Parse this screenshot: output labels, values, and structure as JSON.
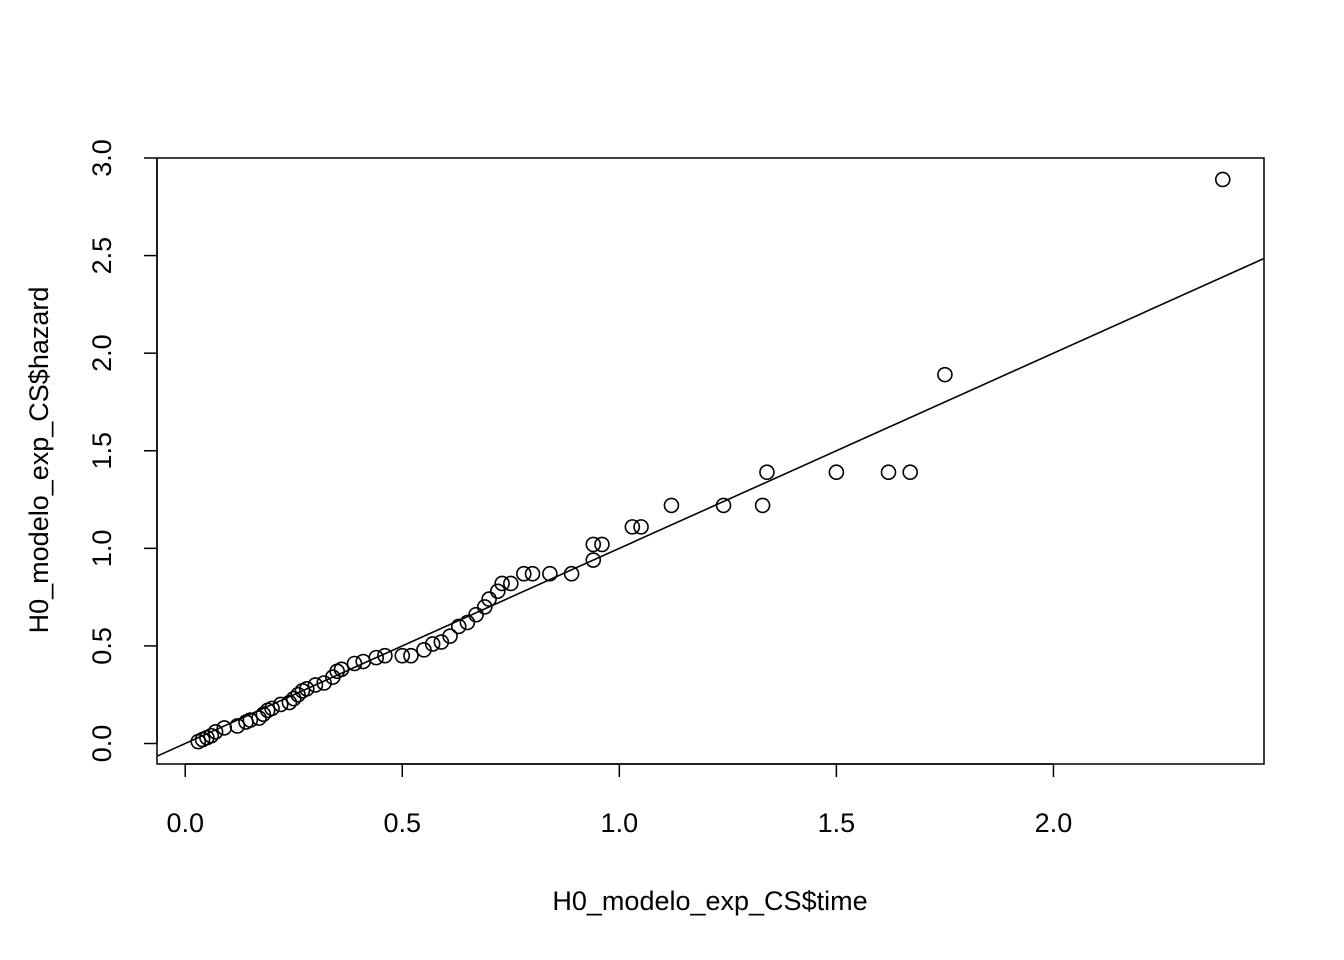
{
  "chart_data": {
    "type": "scatter",
    "title": "",
    "xlabel": "H0_modelo_exp_CS$time",
    "ylabel": "H0_modelo_exp_CS$hazard",
    "xlim": [
      -0.065,
      2.485
    ],
    "ylim": [
      -0.105,
      3.0
    ],
    "xticks": [
      0.0,
      0.5,
      1.0,
      1.5,
      2.0
    ],
    "xtick_labels": [
      "0.0",
      "0.5",
      "1.0",
      "1.5",
      "2.0"
    ],
    "yticks": [
      0.0,
      0.5,
      1.0,
      1.5,
      2.0,
      2.5,
      3.0
    ],
    "ytick_labels": [
      "0.0",
      "0.5",
      "1.0",
      "1.5",
      "2.0",
      "2.5",
      "3.0"
    ],
    "grid": false,
    "legend": "none",
    "reference_line": {
      "intercept": 0.0,
      "slope": 1.0
    },
    "points": [
      {
        "x": 0.03,
        "y": 0.01
      },
      {
        "x": 0.04,
        "y": 0.02
      },
      {
        "x": 0.05,
        "y": 0.03
      },
      {
        "x": 0.06,
        "y": 0.04
      },
      {
        "x": 0.07,
        "y": 0.06
      },
      {
        "x": 0.09,
        "y": 0.08
      },
      {
        "x": 0.12,
        "y": 0.09
      },
      {
        "x": 0.14,
        "y": 0.11
      },
      {
        "x": 0.15,
        "y": 0.12
      },
      {
        "x": 0.17,
        "y": 0.13
      },
      {
        "x": 0.18,
        "y": 0.15
      },
      {
        "x": 0.19,
        "y": 0.17
      },
      {
        "x": 0.2,
        "y": 0.18
      },
      {
        "x": 0.22,
        "y": 0.2
      },
      {
        "x": 0.24,
        "y": 0.21
      },
      {
        "x": 0.25,
        "y": 0.23
      },
      {
        "x": 0.26,
        "y": 0.25
      },
      {
        "x": 0.27,
        "y": 0.27
      },
      {
        "x": 0.28,
        "y": 0.28
      },
      {
        "x": 0.3,
        "y": 0.3
      },
      {
        "x": 0.32,
        "y": 0.31
      },
      {
        "x": 0.34,
        "y": 0.34
      },
      {
        "x": 0.35,
        "y": 0.37
      },
      {
        "x": 0.36,
        "y": 0.38
      },
      {
        "x": 0.39,
        "y": 0.41
      },
      {
        "x": 0.41,
        "y": 0.42
      },
      {
        "x": 0.44,
        "y": 0.44
      },
      {
        "x": 0.46,
        "y": 0.45
      },
      {
        "x": 0.5,
        "y": 0.45
      },
      {
        "x": 0.52,
        "y": 0.45
      },
      {
        "x": 0.55,
        "y": 0.48
      },
      {
        "x": 0.57,
        "y": 0.51
      },
      {
        "x": 0.59,
        "y": 0.52
      },
      {
        "x": 0.61,
        "y": 0.55
      },
      {
        "x": 0.63,
        "y": 0.6
      },
      {
        "x": 0.65,
        "y": 0.62
      },
      {
        "x": 0.67,
        "y": 0.66
      },
      {
        "x": 0.69,
        "y": 0.7
      },
      {
        "x": 0.7,
        "y": 0.74
      },
      {
        "x": 0.72,
        "y": 0.78
      },
      {
        "x": 0.73,
        "y": 0.82
      },
      {
        "x": 0.75,
        "y": 0.82
      },
      {
        "x": 0.78,
        "y": 0.87
      },
      {
        "x": 0.8,
        "y": 0.87
      },
      {
        "x": 0.84,
        "y": 0.87
      },
      {
        "x": 0.89,
        "y": 0.87
      },
      {
        "x": 0.94,
        "y": 0.94
      },
      {
        "x": 0.94,
        "y": 1.02
      },
      {
        "x": 0.96,
        "y": 1.02
      },
      {
        "x": 1.03,
        "y": 1.11
      },
      {
        "x": 1.05,
        "y": 1.11
      },
      {
        "x": 1.12,
        "y": 1.22
      },
      {
        "x": 1.24,
        "y": 1.22
      },
      {
        "x": 1.33,
        "y": 1.22
      },
      {
        "x": 1.34,
        "y": 1.39
      },
      {
        "x": 1.5,
        "y": 1.39
      },
      {
        "x": 1.62,
        "y": 1.39
      },
      {
        "x": 1.67,
        "y": 1.39
      },
      {
        "x": 1.75,
        "y": 1.89
      },
      {
        "x": 2.39,
        "y": 2.89
      }
    ]
  }
}
